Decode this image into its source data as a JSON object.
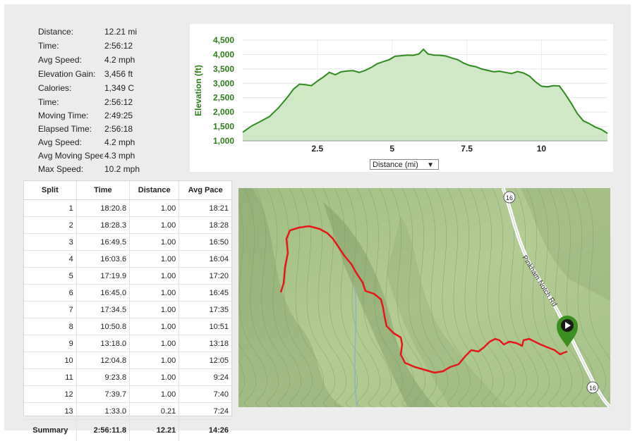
{
  "stats": [
    {
      "label": "Distance:",
      "value": "12.21 mi"
    },
    {
      "label": "Time:",
      "value": "2:56:12"
    },
    {
      "label": "Avg Speed:",
      "value": "4.2 mph"
    },
    {
      "label": "Elevation Gain:",
      "value": "3,456 ft"
    },
    {
      "label": "Calories:",
      "value": "1,349 C"
    },
    {
      "label": "Time:",
      "value": "2:56:12"
    },
    {
      "label": "Moving Time:",
      "value": "2:49:25"
    },
    {
      "label": "Elapsed Time:",
      "value": "2:56:18"
    },
    {
      "label": "Avg Speed:",
      "value": "4.2 mph"
    },
    {
      "label": "Avg Moving Spee",
      "value": "4.3 mph"
    },
    {
      "label": "Max Speed:",
      "value": "10.2 mph"
    }
  ],
  "chart_data": {
    "type": "area",
    "ylabel": "Elevation (ft)",
    "xlim": [
      0,
      12.21
    ],
    "ylim": [
      1000,
      4500
    ],
    "y_ticks": [
      1000,
      1500,
      2000,
      2500,
      3000,
      3500,
      4000,
      4500
    ],
    "y_tick_labels": [
      "1,000",
      "1,500",
      "2,000",
      "2,500",
      "3,000",
      "3,500",
      "4,000",
      "4,500"
    ],
    "x_ticks": [
      2.5,
      5,
      7.5,
      10
    ],
    "x_tick_labels": [
      "2.5",
      "5",
      "7.5",
      "10"
    ],
    "grid": true,
    "color": "#2e8b1e",
    "fill": "#cfe8c5",
    "x": [
      0,
      0.3,
      0.6,
      0.9,
      1.2,
      1.5,
      1.7,
      1.9,
      2.1,
      2.3,
      2.5,
      2.7,
      2.9,
      3.1,
      3.3,
      3.5,
      3.7,
      3.9,
      4.1,
      4.3,
      4.5,
      4.7,
      4.9,
      5.1,
      5.3,
      5.5,
      5.7,
      5.9,
      6.05,
      6.2,
      6.4,
      6.6,
      6.8,
      7.0,
      7.2,
      7.4,
      7.6,
      7.8,
      8.0,
      8.2,
      8.4,
      8.6,
      8.8,
      9.0,
      9.2,
      9.4,
      9.6,
      9.8,
      10.0,
      10.2,
      10.4,
      10.6,
      10.8,
      11.0,
      11.2,
      11.4,
      11.6,
      11.8,
      12.0,
      12.21
    ],
    "y": [
      1300,
      1520,
      1680,
      1850,
      2150,
      2520,
      2800,
      2970,
      2950,
      2920,
      3080,
      3220,
      3380,
      3300,
      3400,
      3430,
      3440,
      3380,
      3450,
      3550,
      3680,
      3750,
      3820,
      3940,
      3960,
      3980,
      3975,
      4020,
      4180,
      4020,
      3980,
      3975,
      3950,
      3880,
      3820,
      3700,
      3620,
      3580,
      3500,
      3450,
      3400,
      3420,
      3380,
      3340,
      3410,
      3360,
      3250,
      3050,
      2900,
      2880,
      2920,
      2910,
      2620,
      2300,
      1950,
      1700,
      1600,
      1480,
      1400,
      1260
    ],
    "dropdown": "Distance (mi)"
  },
  "splits": {
    "headers": [
      "Split",
      "Time",
      "Distance",
      "Avg Pace"
    ],
    "rows": [
      [
        "1",
        "18:20.8",
        "1.00",
        "18:21"
      ],
      [
        "2",
        "18:28.3",
        "1.00",
        "18:28"
      ],
      [
        "3",
        "16:49.5",
        "1.00",
        "16:50"
      ],
      [
        "4",
        "16:03.6",
        "1.00",
        "16:04"
      ],
      [
        "5",
        "17:19.9",
        "1.00",
        "17:20"
      ],
      [
        "6",
        "16:45.0",
        "1.00",
        "16:45"
      ],
      [
        "7",
        "17:34.5",
        "1.00",
        "17:35"
      ],
      [
        "8",
        "10:50.8",
        "1.00",
        "10:51"
      ],
      [
        "9",
        "13:18.0",
        "1.00",
        "13:18"
      ],
      [
        "10",
        "12:04.8",
        "1.00",
        "12:05"
      ],
      [
        "11",
        "9:23.8",
        "1.00",
        "9:24"
      ],
      [
        "12",
        "7:39.7",
        "1.00",
        "7:40"
      ],
      [
        "13",
        "1:33.0",
        "0.21",
        "7:24"
      ]
    ],
    "summary": [
      "Summary",
      "2:56:11.8",
      "12.21",
      "14:26"
    ]
  },
  "map": {
    "road_label": "Pinkham Notch Rd",
    "route_shield": "16",
    "route_color": "#e8161b",
    "marker_color": "#3a8f1f",
    "marker_icon": "play-icon"
  }
}
